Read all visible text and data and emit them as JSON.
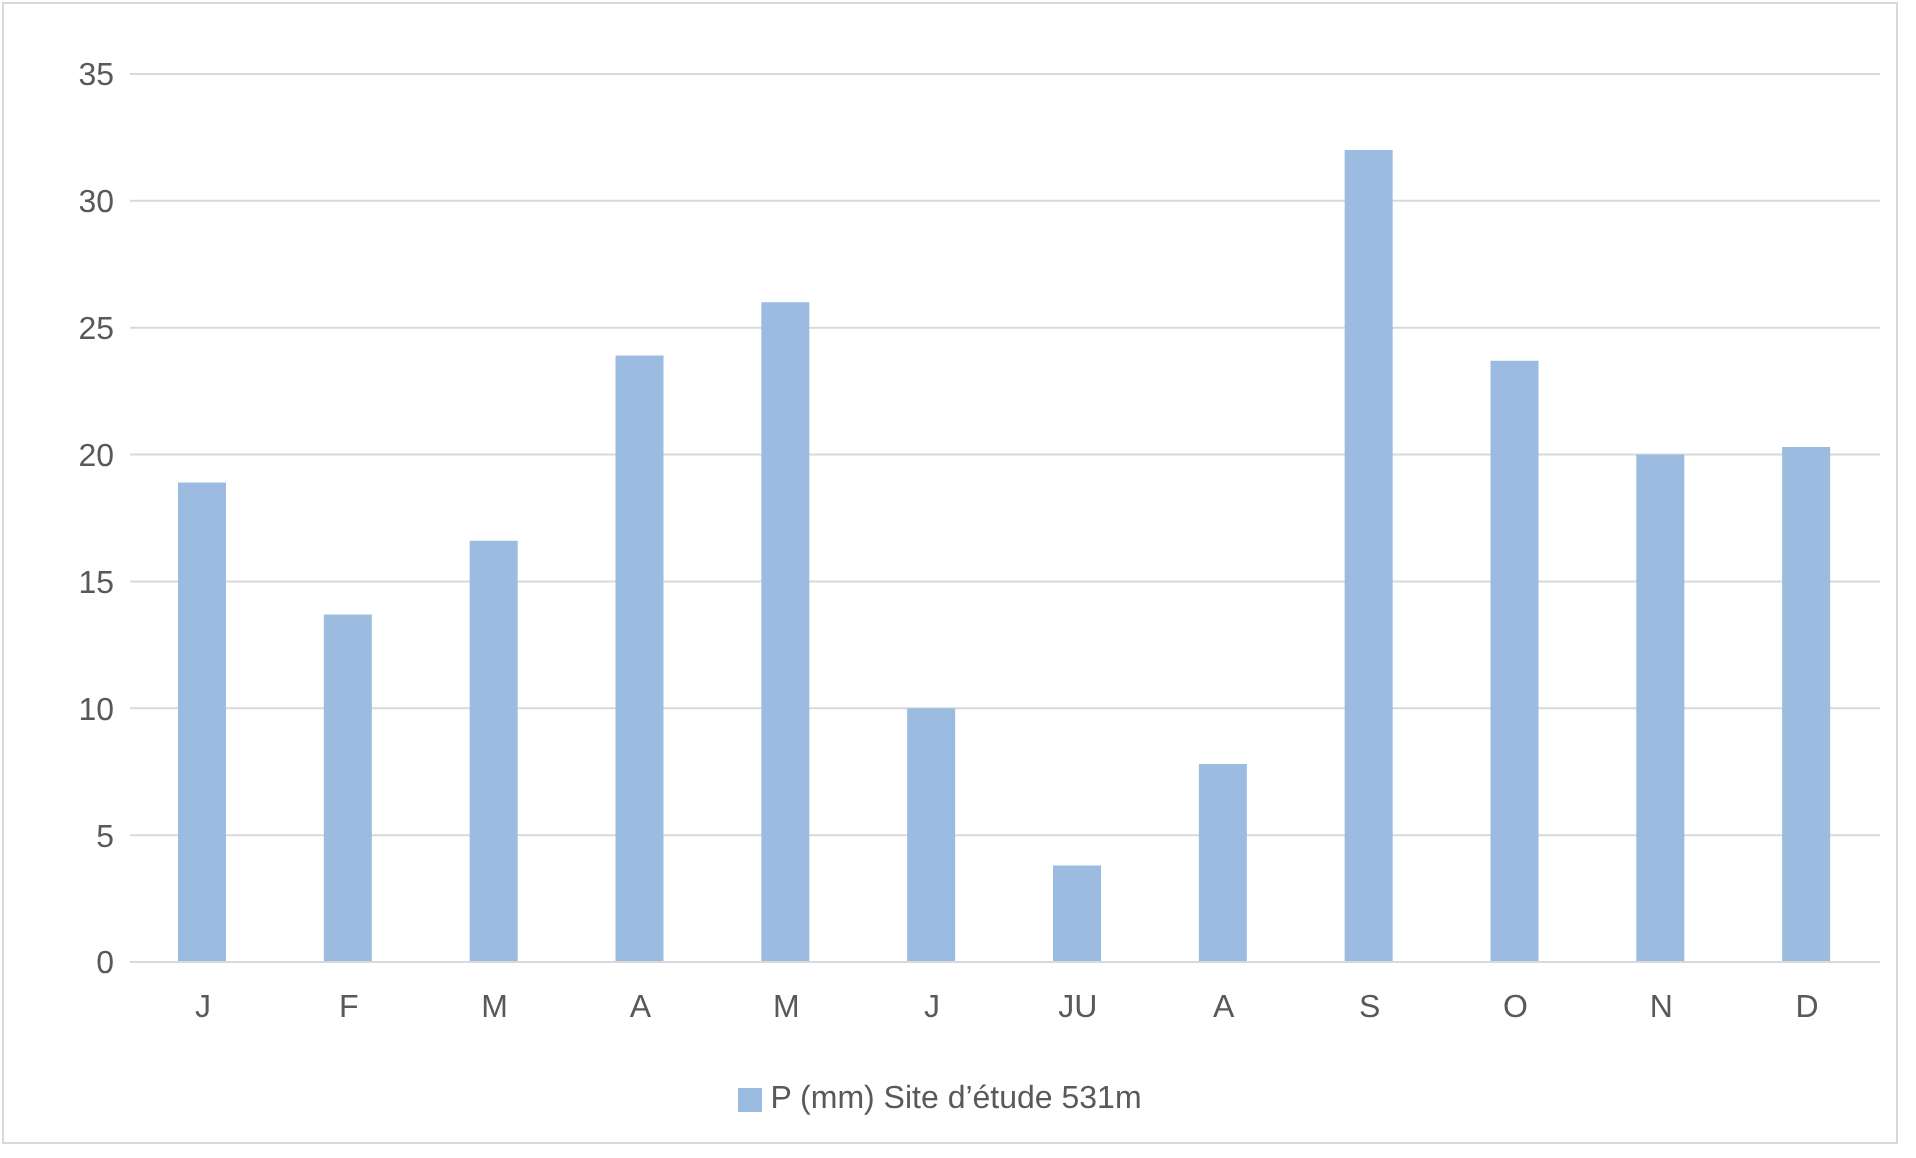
{
  "chart_data": {
    "type": "bar",
    "categories": [
      "J",
      "F",
      "M",
      "A",
      "M",
      "J",
      "JU",
      "A",
      "S",
      "O",
      "N",
      "D"
    ],
    "series": [
      {
        "name": "P (mm) Site d’étude 531m",
        "color": "#9bbbe0",
        "values": [
          18.9,
          13.7,
          16.6,
          23.9,
          26.0,
          10.0,
          3.8,
          7.8,
          32.0,
          23.7,
          20.0,
          20.3
        ]
      }
    ],
    "ylim": [
      0,
      35
    ],
    "yticks": [
      0,
      5,
      10,
      15,
      20,
      25,
      30,
      35
    ],
    "grid": "y",
    "legend": "bottom"
  }
}
